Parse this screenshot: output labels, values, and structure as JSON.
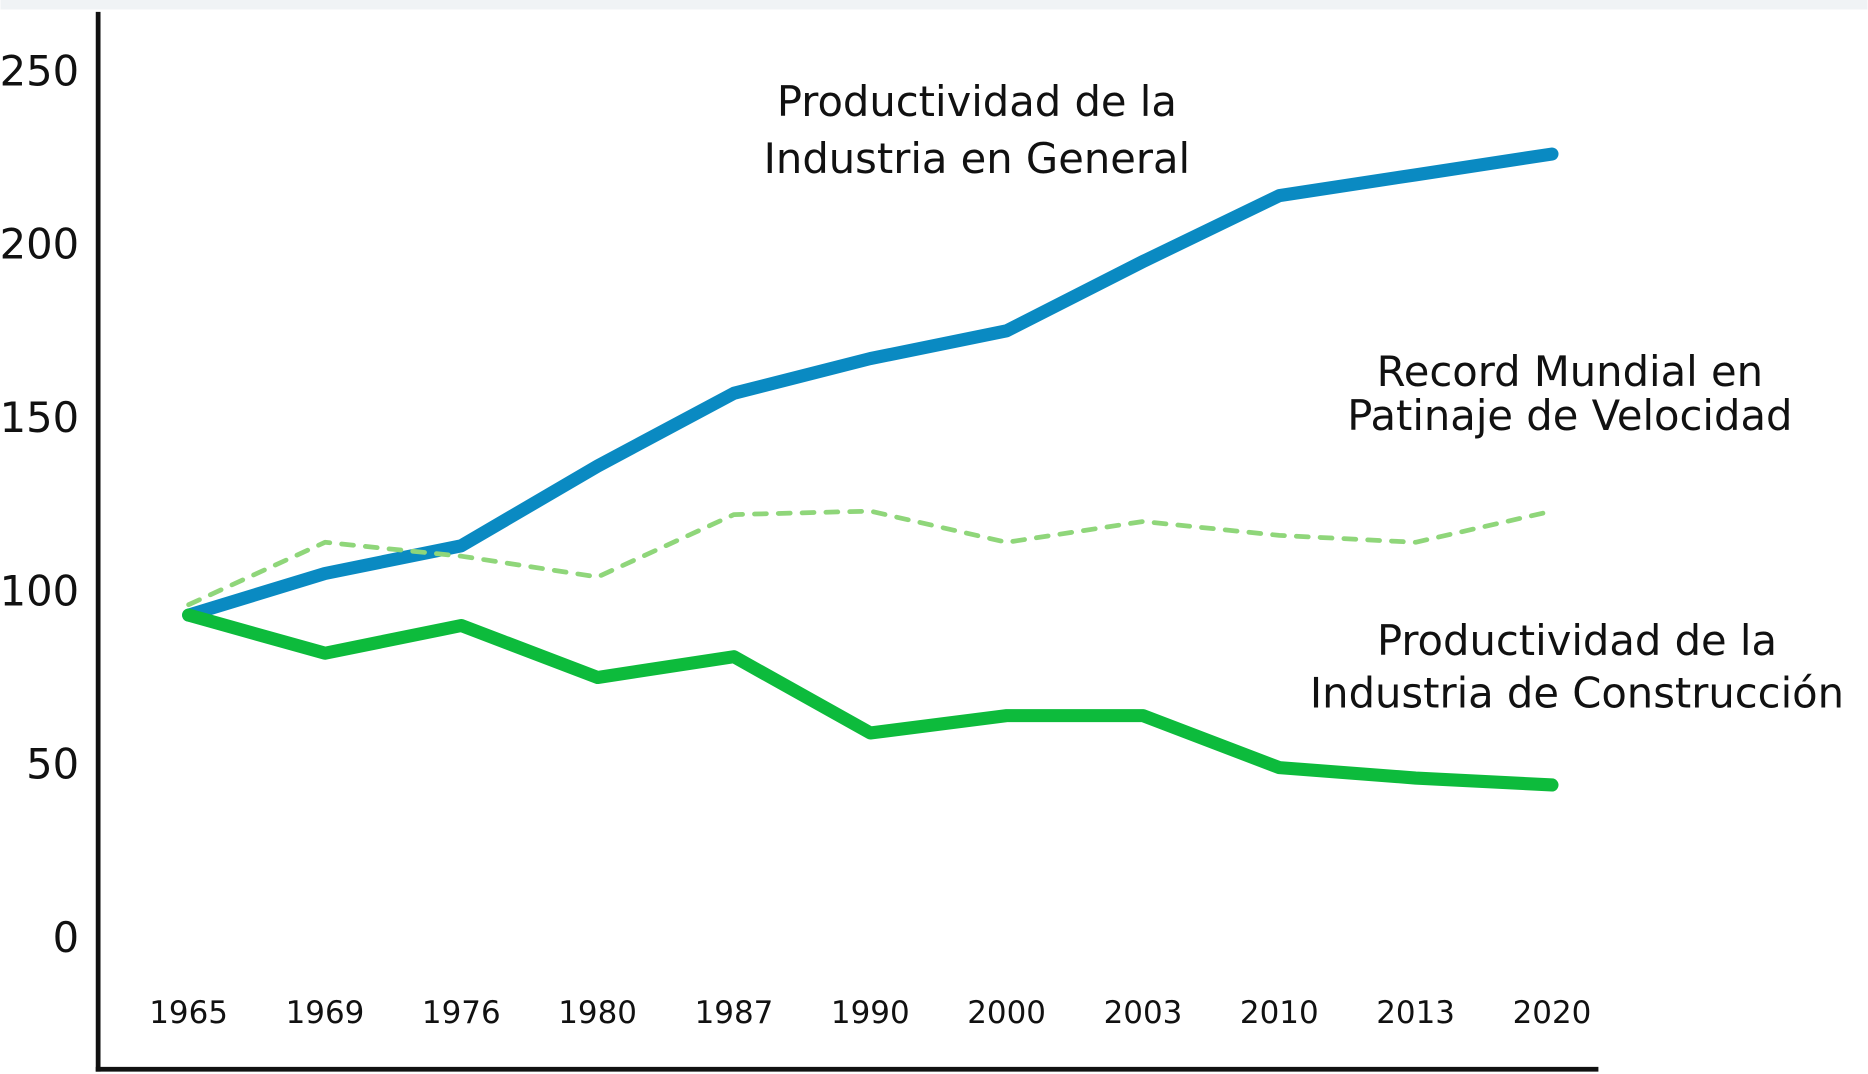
{
  "chart_data": {
    "type": "line",
    "categories": [
      "1965",
      "1969",
      "1976",
      "1980",
      "1987",
      "1990",
      "2000",
      "2003",
      "2010",
      "2013",
      "2020"
    ],
    "series": [
      {
        "color": "#0a8ac2",
        "style": "solid",
        "values": [
          94,
          106,
          114,
          137,
          158,
          168,
          176,
          196,
          215,
          221,
          227
        ]
      },
      {
        "color": "#8fd67a",
        "style": "dotted",
        "values": [
          97,
          115,
          111,
          105,
          123,
          124,
          115,
          121,
          117,
          115,
          124
        ]
      },
      {
        "color": "#0dbb3c",
        "style": "solid",
        "values": [
          94,
          83,
          91,
          76,
          82,
          60,
          65,
          65,
          50,
          47,
          45
        ]
      }
    ],
    "ylim": [
      -37,
      268
    ],
    "yticks": [
      0,
      50,
      100,
      150,
      200,
      250
    ],
    "annotations": [
      [
        "Productividad de la",
        "Industria en General"
      ],
      [
        "Record Mundial en",
        "Patinaje de Velocidad"
      ],
      [
        "Productividad de la",
        "Industria de Construcción"
      ]
    ]
  }
}
